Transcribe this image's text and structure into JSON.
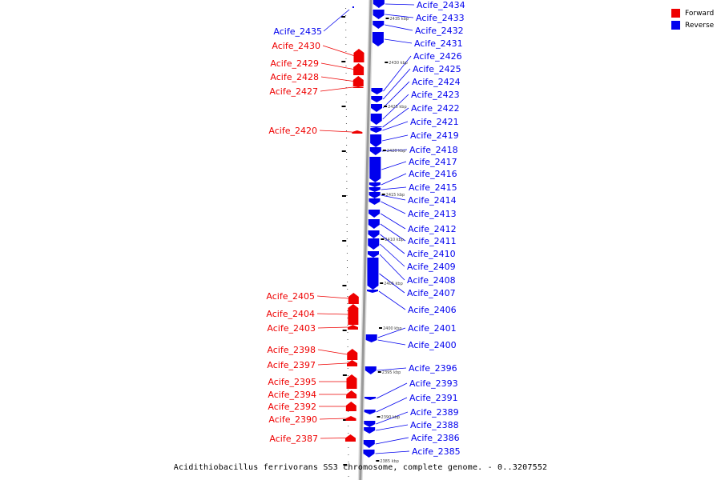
{
  "title": "Acidithiobacillus ferrivorans SS3 chromosome, complete genome. - 0..3207552",
  "legend": [
    {
      "label": "Forward",
      "color": "#ee0000"
    },
    {
      "label": "Reverse",
      "color": "#0000ee"
    }
  ],
  "colors": {
    "forward": "#ee0000",
    "reverse": "#0000ee",
    "backbone": "#999999"
  },
  "ticks": [
    "2435 kbp",
    "2430 kbp",
    "2425 kbp",
    "2420 kbp",
    "2415 kbp",
    "2410 kbp",
    "2405 kbp",
    "2400 kbp",
    "2395 kbp",
    "2390 kbp",
    "2385 kbp"
  ],
  "forward_genes": [
    "Acife_2430",
    "Acife_2429",
    "Acife_2428",
    "Acife_2427",
    "Acife_2420",
    "Acife_2405",
    "Acife_2404",
    "Acife_2403",
    "Acife_2398",
    "Acife_2397",
    "Acife_2395",
    "Acife_2394",
    "Acife_2392",
    "Acife_2390",
    "Acife_2387"
  ],
  "reverse_genes": [
    "Acife_2435",
    "Acife_2434",
    "Acife_2433",
    "Acife_2432",
    "Acife_2431",
    "Acife_2426",
    "Acife_2425",
    "Acife_2424",
    "Acife_2423",
    "Acife_2422",
    "Acife_2421",
    "Acife_2419",
    "Acife_2418",
    "Acife_2417",
    "Acife_2416",
    "Acife_2415",
    "Acife_2414",
    "Acife_2413",
    "Acife_2412",
    "Acife_2411",
    "Acife_2410",
    "Acife_2409",
    "Acife_2408",
    "Acife_2407",
    "Acife_2406",
    "Acife_2401",
    "Acife_2400",
    "Acife_2396",
    "Acife_2393",
    "Acife_2391",
    "Acife_2389",
    "Acife_2388",
    "Acife_2386",
    "Acife_2385"
  ]
}
